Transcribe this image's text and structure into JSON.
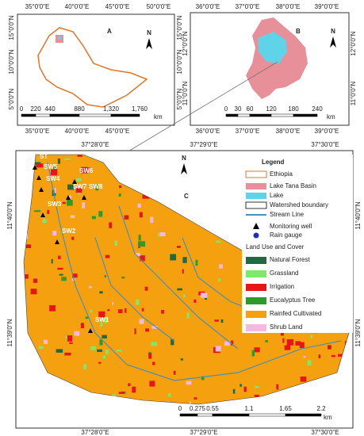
{
  "panel_a": {
    "label": "A",
    "north": "N",
    "top_ticks": [
      "35°0'0\"E",
      "40°0'0\"E",
      "45°0'0\"E",
      "50°0'0\"E"
    ],
    "left_ticks": [
      "15°0'0\"N",
      "10°0'0\"N",
      "5°0'0\"N"
    ],
    "right_ticks": [
      "15°0'0\"N",
      "10°0'0\"N",
      "5°0'0\"N"
    ],
    "bottom_ticks": [
      "35°0'0\"E",
      "40°0'0\"E",
      "45°0'0\"E"
    ],
    "scale": [
      "0",
      "220",
      "440",
      "880",
      "1,320",
      "1,760"
    ],
    "scale_unit": "km"
  },
  "panel_b": {
    "label": "B",
    "north": "N",
    "top_ticks": [
      "36°0'0\"E",
      "37°0'0\"E",
      "38°0'0\"E",
      "39°0'0\"E"
    ],
    "left_ticks": [
      "12°0'0\"N",
      "11°0'0\"N"
    ],
    "right_ticks": [
      "12°0'0\"N",
      "11°0'0\"N"
    ],
    "bottom_ticks": [
      "36°0'0\"E",
      "37°0'0\"E",
      "38°0'0\"E",
      "39°0'0\"E"
    ],
    "scale": [
      "0",
      "30",
      "60",
      "120",
      "180",
      "240"
    ],
    "scale_unit": "km"
  },
  "panel_c": {
    "label": "C",
    "north": "N",
    "top_ticks": [
      "37°28'0\"E",
      "37°29'0\"E",
      "37°30'0\"E"
    ],
    "left_ticks": [
      "11°40'0\"N",
      "11°39'0\"N"
    ],
    "right_ticks": [
      "11°40'0\"N",
      "11°39'0\"N"
    ],
    "bottom_ticks": [
      "37°28'0\"E",
      "37°29'0\"E",
      "37°30'0\"E"
    ],
    "scale": [
      "0",
      "0.275",
      "0.55",
      "1.1",
      "1.65",
      "2.2"
    ],
    "scale_unit": "km",
    "stations": [
      "ST",
      "SW5",
      "SW4",
      "SW6",
      "SW7",
      "SW8",
      "SW3",
      "SW2",
      "SW1"
    ]
  },
  "legend": {
    "title": "Legend",
    "items": [
      "Ethiopia",
      "Lake Tana Basin",
      "Lake",
      "Watershed boundary",
      "Stream Line",
      "Monitoring well",
      "Rain gauge"
    ],
    "land_use_title": "Land Use and Cover",
    "land_use": [
      "Natural Forest",
      "Grassland",
      "Irrigation",
      "Eucalyptus Tree",
      "Rainfed Cultivated",
      "Shrub Land"
    ]
  }
}
